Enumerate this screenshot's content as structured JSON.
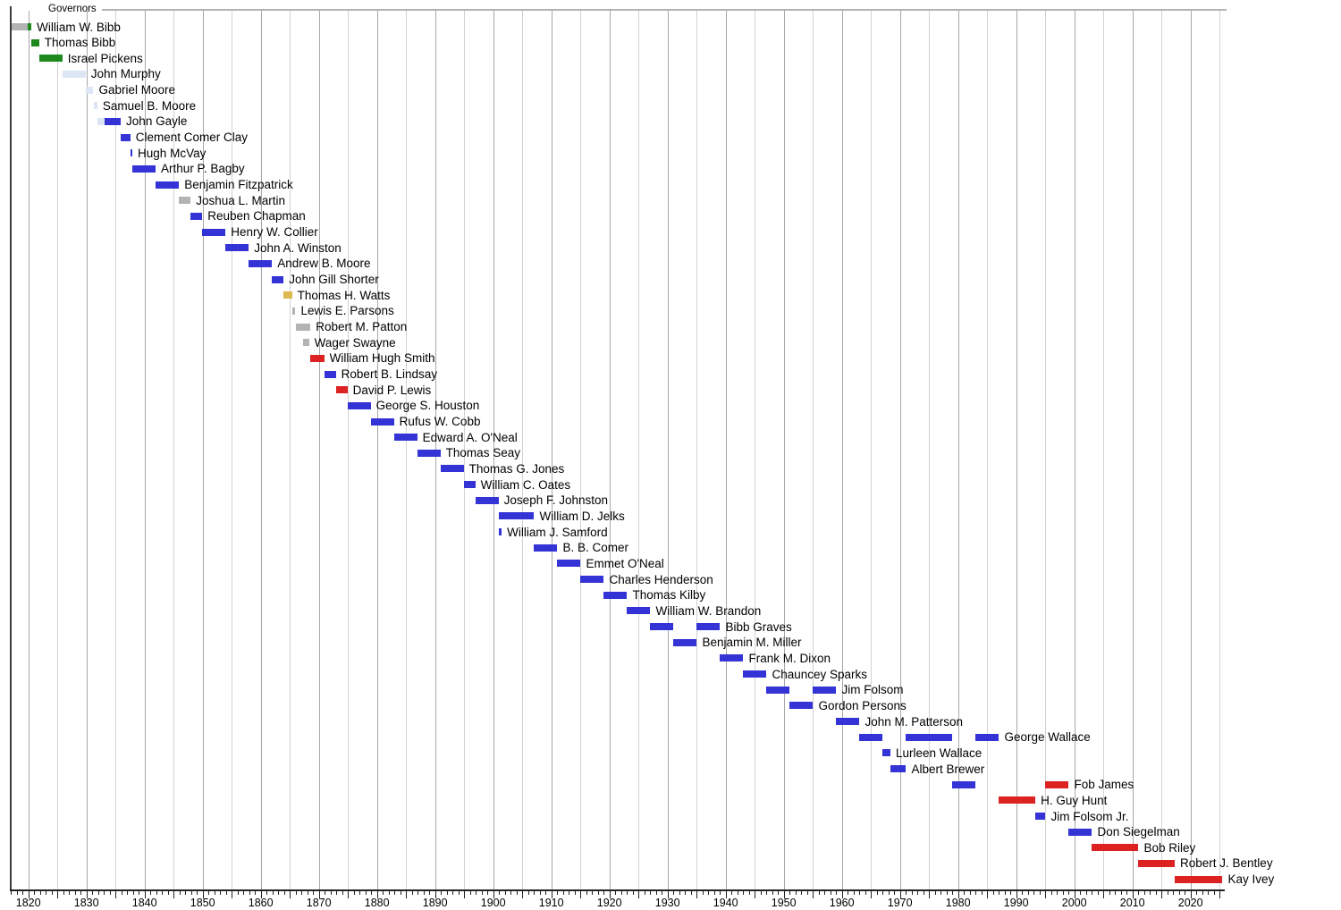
{
  "chart_data": {
    "type": "timeline",
    "title": "Governors",
    "x_axis": {
      "min_year": 1817,
      "max_year": 2026,
      "minor_tick_interval_years": 1,
      "major_tick_interval_years": 5,
      "gridline_interval_years": 5,
      "decade_labels": [
        "1820",
        "1830",
        "1840",
        "1850",
        "1860",
        "1870",
        "1880",
        "1890",
        "1900",
        "1910",
        "1920",
        "1930",
        "1940",
        "1950",
        "1960",
        "1970",
        "1980",
        "1990",
        "2000",
        "2010",
        "2020"
      ]
    },
    "palette": {
      "democratic_republican_green": "#1e8a1e",
      "democratic_blue": "#3333d6",
      "republican_red": "#dd2222",
      "whig_pale_blue": "#dce6f4",
      "provisional_gray": "#b3b3b3",
      "confederate_gold": "#ddb84d"
    },
    "legend_position": "none",
    "grid": true,
    "governors": [
      {
        "name": "William W. Bibb",
        "segments": [
          {
            "from": 1817.1,
            "to": 1819.85,
            "color": "provisional_gray"
          },
          {
            "from": 1819.85,
            "to": 1820.52,
            "color": "democratic_republican_green"
          }
        ]
      },
      {
        "name": "Thomas Bibb",
        "segments": [
          {
            "from": 1820.52,
            "to": 1821.85,
            "color": "democratic_republican_green"
          }
        ]
      },
      {
        "name": "Israel Pickens",
        "segments": [
          {
            "from": 1821.85,
            "to": 1825.85,
            "color": "democratic_republican_green"
          }
        ]
      },
      {
        "name": "John Murphy",
        "segments": [
          {
            "from": 1825.85,
            "to": 1829.85,
            "color": "whig_pale_blue"
          }
        ]
      },
      {
        "name": "Gabriel Moore",
        "segments": [
          {
            "from": 1829.85,
            "to": 1831.2,
            "color": "whig_pale_blue"
          }
        ]
      },
      {
        "name": "Samuel B. Moore",
        "segments": [
          {
            "from": 1831.2,
            "to": 1831.87,
            "color": "whig_pale_blue"
          }
        ]
      },
      {
        "name": "John Gayle",
        "segments": [
          {
            "from": 1831.87,
            "to": 1833.1,
            "color": "whig_pale_blue"
          },
          {
            "from": 1833.1,
            "to": 1835.9,
            "color": "democratic_blue"
          }
        ]
      },
      {
        "name": "Clement Comer Clay",
        "segments": [
          {
            "from": 1835.9,
            "to": 1837.54,
            "color": "democratic_blue"
          }
        ]
      },
      {
        "name": "Hugh McVay",
        "segments": [
          {
            "from": 1837.54,
            "to": 1837.9,
            "color": "democratic_blue"
          }
        ]
      },
      {
        "name": "Arthur P. Bagby",
        "segments": [
          {
            "from": 1837.9,
            "to": 1841.9,
            "color": "democratic_blue"
          }
        ]
      },
      {
        "name": "Benjamin Fitzpatrick",
        "segments": [
          {
            "from": 1841.9,
            "to": 1845.93,
            "color": "democratic_blue"
          }
        ]
      },
      {
        "name": "Joshua L. Martin",
        "segments": [
          {
            "from": 1845.93,
            "to": 1847.93,
            "color": "provisional_gray"
          }
        ]
      },
      {
        "name": "Reuben Chapman",
        "segments": [
          {
            "from": 1847.93,
            "to": 1849.93,
            "color": "democratic_blue"
          }
        ]
      },
      {
        "name": "Henry W. Collier",
        "segments": [
          {
            "from": 1849.93,
            "to": 1853.93,
            "color": "democratic_blue"
          }
        ]
      },
      {
        "name": "John A. Winston",
        "segments": [
          {
            "from": 1853.93,
            "to": 1857.93,
            "color": "democratic_blue"
          }
        ]
      },
      {
        "name": "Andrew B. Moore",
        "segments": [
          {
            "from": 1857.93,
            "to": 1861.93,
            "color": "democratic_blue"
          }
        ]
      },
      {
        "name": "John Gill Shorter",
        "segments": [
          {
            "from": 1861.93,
            "to": 1863.93,
            "color": "democratic_blue"
          }
        ]
      },
      {
        "name": "Thomas H. Watts",
        "segments": [
          {
            "from": 1863.93,
            "to": 1865.37,
            "color": "confederate_gold"
          }
        ]
      },
      {
        "name": "Lewis E. Parsons",
        "segments": [
          {
            "from": 1865.48,
            "to": 1865.97,
            "color": "provisional_gray"
          }
        ]
      },
      {
        "name": "Robert M. Patton",
        "segments": [
          {
            "from": 1865.97,
            "to": 1868.55,
            "color": "provisional_gray"
          }
        ]
      },
      {
        "name": "Wager Swayne",
        "segments": [
          {
            "from": 1867.2,
            "to": 1868.3,
            "color": "provisional_gray"
          }
        ]
      },
      {
        "name": "William Hugh Smith",
        "segments": [
          {
            "from": 1868.55,
            "to": 1870.92,
            "color": "republican_red"
          }
        ]
      },
      {
        "name": "Robert B. Lindsay",
        "segments": [
          {
            "from": 1870.92,
            "to": 1872.92,
            "color": "democratic_blue"
          }
        ]
      },
      {
        "name": "David P. Lewis",
        "segments": [
          {
            "from": 1872.92,
            "to": 1874.92,
            "color": "republican_red"
          }
        ]
      },
      {
        "name": "George S. Houston",
        "segments": [
          {
            "from": 1874.92,
            "to": 1878.92,
            "color": "democratic_blue"
          }
        ]
      },
      {
        "name": "Rufus W. Cobb",
        "segments": [
          {
            "from": 1878.92,
            "to": 1882.92,
            "color": "democratic_blue"
          }
        ]
      },
      {
        "name": "Edward A. O'Neal",
        "segments": [
          {
            "from": 1882.92,
            "to": 1886.92,
            "color": "democratic_blue"
          }
        ]
      },
      {
        "name": "Thomas Seay",
        "segments": [
          {
            "from": 1886.92,
            "to": 1890.92,
            "color": "democratic_blue"
          }
        ]
      },
      {
        "name": "Thomas G. Jones",
        "segments": [
          {
            "from": 1890.92,
            "to": 1894.92,
            "color": "democratic_blue"
          }
        ]
      },
      {
        "name": "William C. Oates",
        "segments": [
          {
            "from": 1894.92,
            "to": 1896.92,
            "color": "democratic_blue"
          }
        ]
      },
      {
        "name": "Joseph F. Johnston",
        "segments": [
          {
            "from": 1896.92,
            "to": 1900.92,
            "color": "democratic_blue"
          }
        ]
      },
      {
        "name": "William D. Jelks",
        "segments": [
          {
            "from": 1900.92,
            "to": 1907.04,
            "color": "democratic_blue"
          }
        ]
      },
      {
        "name": "William J. Samford",
        "segments": [
          {
            "from": 1900.99,
            "to": 1901.45,
            "color": "democratic_blue"
          }
        ]
      },
      {
        "name": "B. B. Comer",
        "segments": [
          {
            "from": 1907.04,
            "to": 1911.04,
            "color": "democratic_blue"
          }
        ]
      },
      {
        "name": "Emmet O'Neal",
        "segments": [
          {
            "from": 1911.04,
            "to": 1915.04,
            "color": "democratic_blue"
          }
        ]
      },
      {
        "name": "Charles Henderson",
        "segments": [
          {
            "from": 1915.04,
            "to": 1919.04,
            "color": "democratic_blue"
          }
        ]
      },
      {
        "name": "Thomas Kilby",
        "segments": [
          {
            "from": 1919.04,
            "to": 1923.04,
            "color": "democratic_blue"
          }
        ]
      },
      {
        "name": "William W. Brandon",
        "segments": [
          {
            "from": 1923.04,
            "to": 1927.04,
            "color": "democratic_blue"
          }
        ]
      },
      {
        "name": "Bibb Graves",
        "segments": [
          {
            "from": 1927.04,
            "to": 1931.04,
            "color": "democratic_blue"
          },
          {
            "from": 1935.04,
            "to": 1939.04,
            "color": "democratic_blue"
          }
        ]
      },
      {
        "name": "Benjamin M. Miller",
        "segments": [
          {
            "from": 1931.04,
            "to": 1935.04,
            "color": "democratic_blue"
          }
        ]
      },
      {
        "name": "Frank M. Dixon",
        "segments": [
          {
            "from": 1939.04,
            "to": 1943.04,
            "color": "democratic_blue"
          }
        ]
      },
      {
        "name": "Chauncey Sparks",
        "segments": [
          {
            "from": 1943.04,
            "to": 1947.04,
            "color": "democratic_blue"
          }
        ]
      },
      {
        "name": "Jim Folsom",
        "segments": [
          {
            "from": 1947.04,
            "to": 1951.04,
            "color": "democratic_blue"
          },
          {
            "from": 1955.04,
            "to": 1959.04,
            "color": "democratic_blue"
          }
        ]
      },
      {
        "name": "Gordon Persons",
        "segments": [
          {
            "from": 1951.04,
            "to": 1955.04,
            "color": "democratic_blue"
          }
        ]
      },
      {
        "name": "John M. Patterson",
        "segments": [
          {
            "from": 1959.04,
            "to": 1963.04,
            "color": "democratic_blue"
          }
        ]
      },
      {
        "name": "George Wallace",
        "segments": [
          {
            "from": 1963.04,
            "to": 1967.04,
            "color": "democratic_blue"
          },
          {
            "from": 1971.04,
            "to": 1979.04,
            "color": "democratic_blue"
          },
          {
            "from": 1983.04,
            "to": 1987.04,
            "color": "democratic_blue"
          }
        ]
      },
      {
        "name": "Lurleen Wallace",
        "segments": [
          {
            "from": 1967.04,
            "to": 1968.35,
            "color": "democratic_blue"
          }
        ]
      },
      {
        "name": "Albert Brewer",
        "segments": [
          {
            "from": 1968.35,
            "to": 1971.04,
            "color": "democratic_blue"
          }
        ]
      },
      {
        "name": "Fob James",
        "segments": [
          {
            "from": 1979.04,
            "to": 1983.04,
            "color": "democratic_blue"
          },
          {
            "from": 1995.04,
            "to": 1999.04,
            "color": "republican_red"
          }
        ]
      },
      {
        "name": "H. Guy Hunt",
        "segments": [
          {
            "from": 1987.04,
            "to": 1993.3,
            "color": "republican_red"
          }
        ]
      },
      {
        "name": "Jim Folsom Jr.",
        "segments": [
          {
            "from": 1993.3,
            "to": 1995.04,
            "color": "democratic_blue"
          }
        ]
      },
      {
        "name": "Don Siegelman",
        "segments": [
          {
            "from": 1999.04,
            "to": 2003.04,
            "color": "democratic_blue"
          }
        ]
      },
      {
        "name": "Bob Riley",
        "segments": [
          {
            "from": 2003.04,
            "to": 2011.04,
            "color": "republican_red"
          }
        ]
      },
      {
        "name": "Robert J. Bentley",
        "segments": [
          {
            "from": 2011.04,
            "to": 2017.28,
            "color": "republican_red"
          }
        ]
      },
      {
        "name": "Kay Ivey",
        "segments": [
          {
            "from": 2017.28,
            "to": 2025.5,
            "color": "republican_red"
          }
        ]
      }
    ]
  }
}
